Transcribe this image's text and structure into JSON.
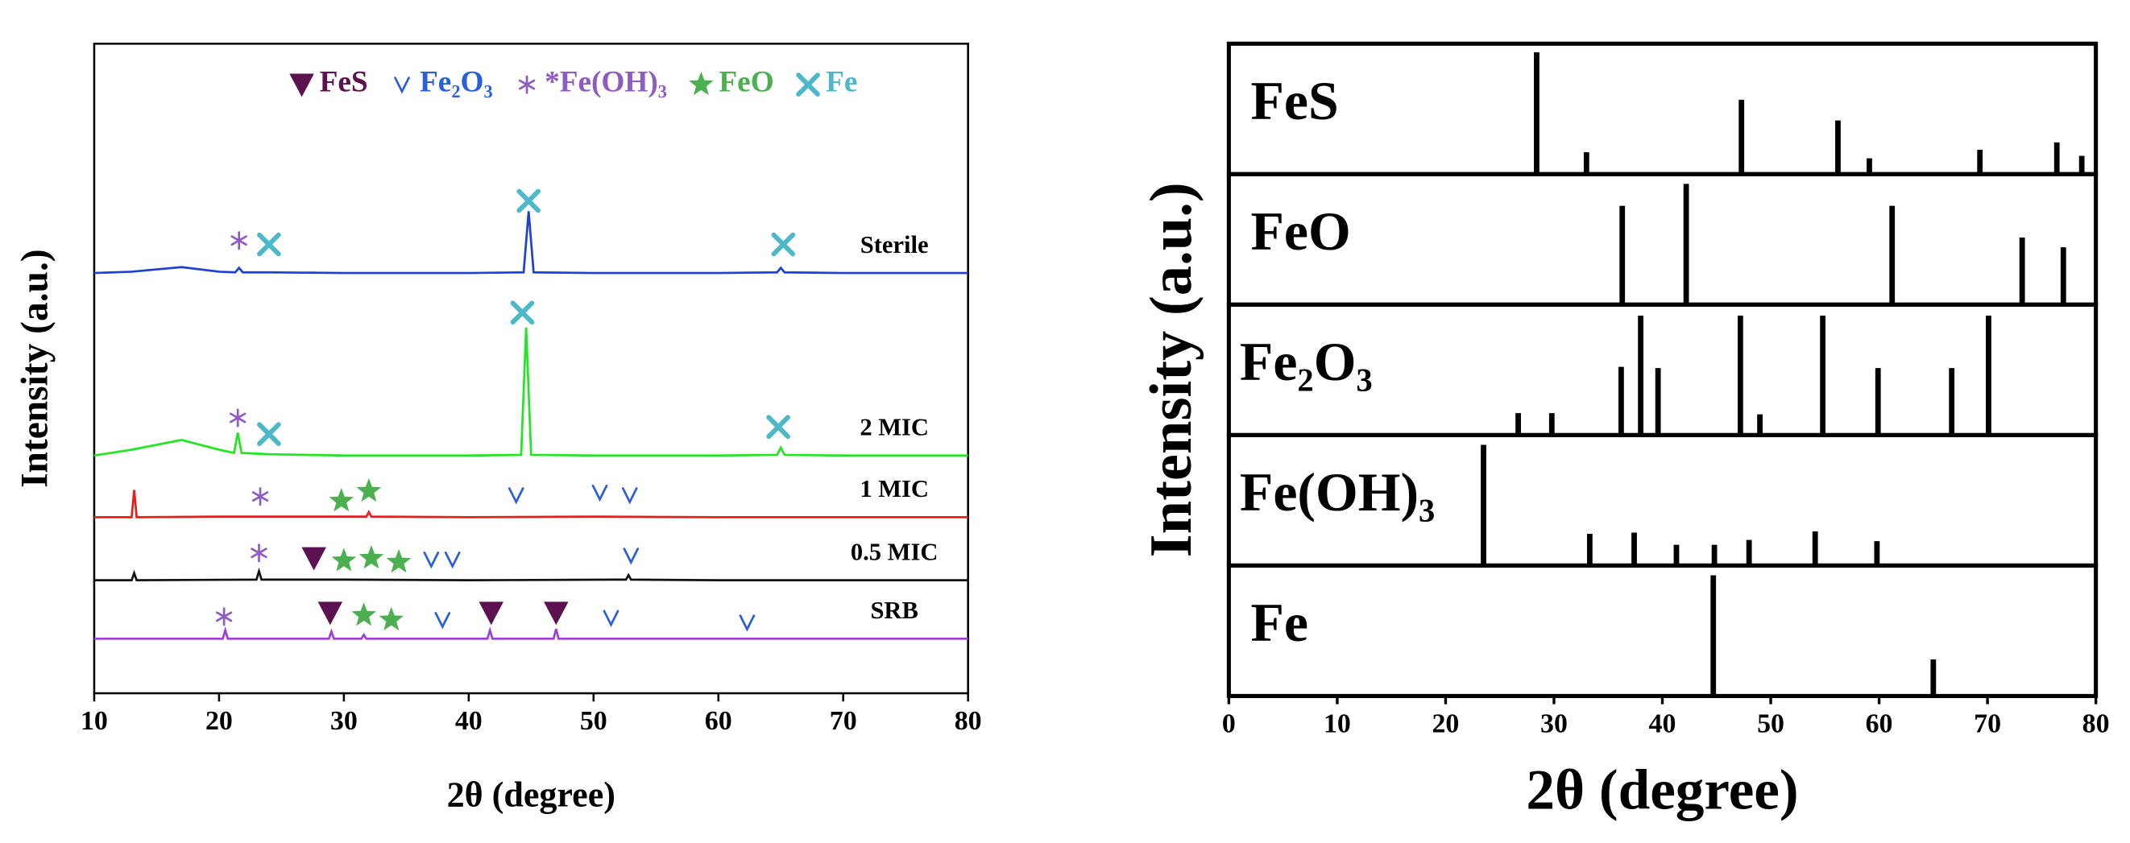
{
  "chart_data": [
    {
      "type": "line",
      "xlabel": "2θ (degree)",
      "ylabel": "Intensity (a.u.)",
      "xlim": [
        10,
        80
      ],
      "xticks": [
        10,
        20,
        30,
        40,
        50,
        60,
        70,
        80
      ],
      "ylim": [
        0,
        100
      ],
      "legend": "top",
      "series": [
        {
          "name": "Sterile",
          "color": "#1f3fd6",
          "x": [
            10,
            13,
            17,
            20,
            21.3,
            21.6,
            21.9,
            24,
            30,
            40,
            44.4,
            44.8,
            45.2,
            50,
            60,
            64.7,
            65,
            65.3,
            70,
            80
          ],
          "values": [
            64.7,
            64.9,
            65.6,
            64.9,
            64.8,
            65.5,
            64.8,
            64.8,
            64.7,
            64.7,
            64.8,
            74.2,
            64.8,
            64.7,
            64.7,
            64.8,
            65.5,
            64.8,
            64.7,
            64.7
          ]
        },
        {
          "name": "2 MIC",
          "color": "#22e622",
          "x": [
            10,
            13,
            17,
            20,
            21.2,
            21.5,
            21.8,
            24,
            30,
            40,
            44.2,
            44.6,
            45.0,
            50,
            60,
            64.7,
            65,
            65.3,
            70,
            80
          ],
          "values": [
            36.6,
            37.5,
            39,
            37.5,
            37.0,
            40.1,
            37.0,
            36.8,
            36.6,
            36.6,
            36.7,
            56.3,
            36.7,
            36.6,
            36.6,
            36.7,
            37.8,
            36.7,
            36.6,
            36.6
          ]
        },
        {
          "name": "1 MIC",
          "color": "#e61e1e",
          "x": [
            10,
            13.0,
            13.2,
            13.4,
            20,
            31.8,
            32,
            32.2,
            40,
            50,
            60,
            70,
            80
          ],
          "values": [
            27.1,
            27.1,
            31.3,
            27.1,
            27.2,
            27.2,
            27.9,
            27.2,
            27.1,
            27.2,
            27.1,
            27.1,
            27.1
          ]
        },
        {
          "name": "0.5 MIC",
          "color": "#111111",
          "x": [
            10,
            13.0,
            13.2,
            13.4,
            23.0,
            23.2,
            23.4,
            30,
            40,
            52.6,
            52.8,
            53.0,
            60,
            70,
            80
          ],
          "values": [
            17.4,
            17.4,
            18.5,
            17.4,
            17.5,
            18.8,
            17.5,
            17.5,
            17.4,
            17.5,
            18.2,
            17.5,
            17.4,
            17.4,
            17.4
          ]
        },
        {
          "name": "SRB",
          "color": "#9b3fd6",
          "x": [
            10,
            20.3,
            20.5,
            20.7,
            28.8,
            29,
            29.2,
            31.4,
            31.6,
            31.8,
            41.5,
            41.7,
            41.9,
            46.8,
            47,
            47.2,
            60,
            80
          ],
          "values": [
            8.4,
            8.4,
            9.7,
            8.4,
            8.4,
            9.5,
            8.4,
            8.4,
            9.0,
            8.4,
            8.4,
            9.7,
            8.4,
            8.4,
            9.9,
            8.4,
            8.4,
            8.4
          ]
        }
      ],
      "markers": [
        {
          "name": "FeS",
          "symbol": "triangle",
          "color": "#5c1150",
          "x": [
            27.6,
            28.9,
            41.8,
            47
          ],
          "y": [
            20.8,
            12.4,
            12.4,
            12.4
          ]
        },
        {
          "name": "Fe₂O₃",
          "symbol": "vee",
          "color": "#2b5fd9",
          "x": [
            43.8,
            50.5,
            52.9,
            37,
            38.7,
            53,
            37.9,
            51.4,
            62.3
          ],
          "y": [
            30.5,
            30.9,
            30.5,
            20.6,
            20.6,
            21.2,
            11.3,
            11.6,
            10.9
          ]
        },
        {
          "name": "*Fe(OH)₃",
          "symbol": "asterisk",
          "color": "#8e5cc0",
          "x": [
            21.6,
            21.5,
            23.3,
            23.2,
            20.4
          ],
          "y": [
            69.7,
            42.4,
            30.3,
            21.6,
            11.8
          ]
        },
        {
          "name": "FeO",
          "symbol": "star",
          "color": "#4caf50",
          "x": [
            29.8,
            32,
            30,
            32.2,
            34.4,
            31.6,
            33.8
          ],
          "y": [
            29.6,
            31.1,
            20.4,
            20.8,
            20.2,
            12.0,
            11.3
          ]
        },
        {
          "name": "Fe",
          "symbol": "cross",
          "color": "#4db8c8",
          "x": [
            24.0,
            44.8,
            65.2,
            24.0,
            44.3,
            64.8
          ],
          "y": [
            69.1,
            75.8,
            69.1,
            39.9,
            58.6,
            41.0
          ]
        }
      ]
    },
    {
      "type": "stick",
      "xlabel": "2θ (degree)",
      "ylabel": "Intensity (a.u.)",
      "xlim": [
        0,
        80
      ],
      "xticks": [
        0,
        10,
        20,
        30,
        40,
        50,
        60,
        70,
        80
      ],
      "ylim": [
        0,
        107
      ],
      "color": "#000000",
      "panels": [
        {
          "name": "FeS",
          "x": [
            28.4,
            33.0,
            47.3,
            56.2,
            59.1,
            69.3,
            76.4,
            78.7
          ],
          "values": [
            100,
            18,
            61,
            44,
            13,
            20,
            26,
            15
          ]
        },
        {
          "name": "FeO",
          "x": [
            36.3,
            42.2,
            61.2,
            73.2,
            77.0
          ],
          "values": [
            81,
            99,
            81,
            55,
            47
          ]
        },
        {
          "name": "Fe₂O₃",
          "x": [
            26.7,
            29.8,
            36.2,
            38.0,
            39.6,
            47.2,
            49.0,
            54.8,
            59.9,
            66.7,
            70.1
          ],
          "values": [
            18,
            18,
            56,
            98,
            55,
            98,
            17,
            98,
            55,
            55,
            98
          ]
        },
        {
          "name": "Fe(OH)₃",
          "x": [
            23.5,
            33.3,
            37.4,
            41.3,
            44.8,
            48.0,
            54.1,
            59.8
          ],
          "values": [
            99,
            26,
            27,
            17,
            17,
            21,
            28,
            20
          ]
        },
        {
          "name": "Fe",
          "x": [
            44.7,
            65.0
          ],
          "values": [
            99,
            30
          ]
        }
      ]
    }
  ]
}
